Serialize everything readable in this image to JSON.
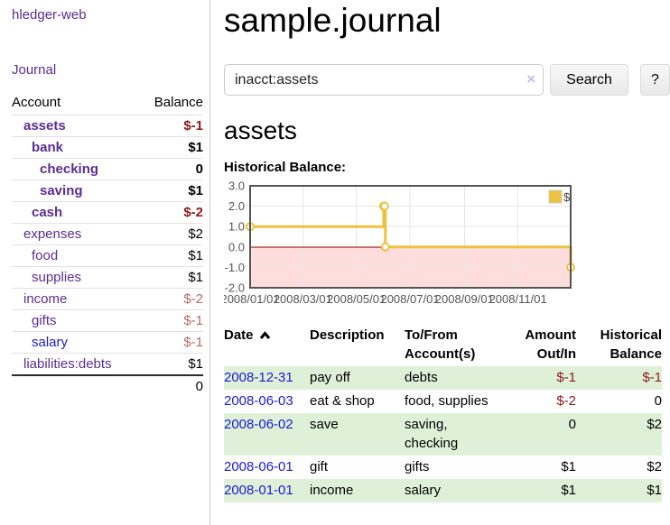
{
  "sidebar": {
    "brand": "hledger-web",
    "journal_link": "Journal",
    "accounts_table": {
      "headers": [
        "Account",
        "Balance"
      ],
      "rows": [
        {
          "account": "assets",
          "depth": 1,
          "bold": true,
          "balance": "$-1",
          "balance_style": "neg-bold",
          "link": "purple"
        },
        {
          "account": "bank",
          "depth": 2,
          "bold": true,
          "balance": "$1",
          "balance_style": "pos-bold",
          "link": "purple"
        },
        {
          "account": "checking",
          "depth": 3,
          "bold": true,
          "balance": "0",
          "balance_style": "pos-bold",
          "link": "purple"
        },
        {
          "account": "saving",
          "depth": 3,
          "bold": true,
          "balance": "$1",
          "balance_style": "pos-bold",
          "link": "purple"
        },
        {
          "account": "cash",
          "depth": 2,
          "bold": true,
          "balance": "$-2",
          "balance_style": "neg-bold",
          "link": "purple"
        },
        {
          "account": "expenses",
          "depth": 1,
          "bold": false,
          "balance": "$2",
          "balance_style": "pos",
          "link": "purple"
        },
        {
          "account": "food",
          "depth": 2,
          "bold": false,
          "balance": "$1",
          "balance_style": "pos",
          "link": "purple"
        },
        {
          "account": "supplies",
          "depth": 2,
          "bold": false,
          "balance": "$1",
          "balance_style": "pos",
          "link": "purple"
        },
        {
          "account": "income",
          "depth": 1,
          "bold": false,
          "balance": "$-2",
          "balance_style": "neg-light",
          "link": "purple"
        },
        {
          "account": "gifts",
          "depth": 2,
          "bold": false,
          "balance": "$-1",
          "balance_style": "neg-light",
          "link": "purple"
        },
        {
          "account": "salary",
          "depth": 2,
          "bold": false,
          "balance": "$-1",
          "balance_style": "neg-light",
          "link": "blue"
        },
        {
          "account": "liabilities:debts",
          "depth": 1,
          "bold": false,
          "balance": "$1",
          "balance_style": "pos",
          "link": "purple"
        }
      ],
      "total": "0"
    }
  },
  "header": {
    "title": "sample.journal"
  },
  "search": {
    "value": "inacct:assets",
    "clear_icon": "×",
    "button": "Search",
    "help_button": "?"
  },
  "account_page": {
    "heading": "assets",
    "chart_label": "Historical Balance:"
  },
  "chart_data": {
    "type": "line",
    "title": "Historical Balance",
    "step": true,
    "series": [
      {
        "name": "$",
        "color": "#edc240",
        "points": [
          [
            "2008-01-01",
            1
          ],
          [
            "2008-06-01",
            2
          ],
          [
            "2008-06-02",
            2
          ],
          [
            "2008-06-03",
            0
          ],
          [
            "2008-12-31",
            -1
          ]
        ]
      }
    ],
    "xlim": [
      "2008-01-01",
      "2008-12-31"
    ],
    "ylim": [
      -2,
      3
    ],
    "y_ticks": [
      "3.0",
      "2.0",
      "1.0",
      "0.0",
      "-1.0",
      "-2.0"
    ],
    "x_ticks": [
      "2008/01/01",
      "2008/03/01",
      "2008/05/01",
      "2008/07/01",
      "2008/09/01",
      "2008/11/01"
    ],
    "legend": "$",
    "legend_position": "top-right",
    "grid": true,
    "zero_line_color": "#8b0000",
    "negative_region_color": "#ffdddd",
    "tick_color": "#545454"
  },
  "register": {
    "columns": [
      "Date",
      "Description",
      "To/From Account(s)",
      "Amount Out/In",
      "Historical Balance"
    ],
    "sort_column": "Date",
    "sort_direction": "ascending",
    "rows": [
      {
        "date": "2008-12-31",
        "description": "pay off",
        "accounts": "debts",
        "amount": "$-1",
        "amount_negative": true,
        "balance": "$-1",
        "balance_negative": true,
        "highlight": true
      },
      {
        "date": "2008-06-03",
        "description": "eat & shop",
        "accounts": "food, supplies",
        "amount": "$-2",
        "amount_negative": true,
        "balance": "0",
        "balance_negative": false,
        "highlight": false
      },
      {
        "date": "2008-06-02",
        "description": "save",
        "accounts": "saving, checking",
        "amount": "0",
        "amount_negative": false,
        "balance": "$2",
        "balance_negative": false,
        "highlight": true
      },
      {
        "date": "2008-06-01",
        "description": "gift",
        "accounts": "gifts",
        "amount": "$1",
        "amount_negative": false,
        "balance": "$2",
        "balance_negative": false,
        "highlight": false
      },
      {
        "date": "2008-01-01",
        "description": "income",
        "accounts": "salary",
        "amount": "$1",
        "amount_negative": false,
        "balance": "$1",
        "balance_negative": false,
        "highlight": true
      }
    ]
  }
}
